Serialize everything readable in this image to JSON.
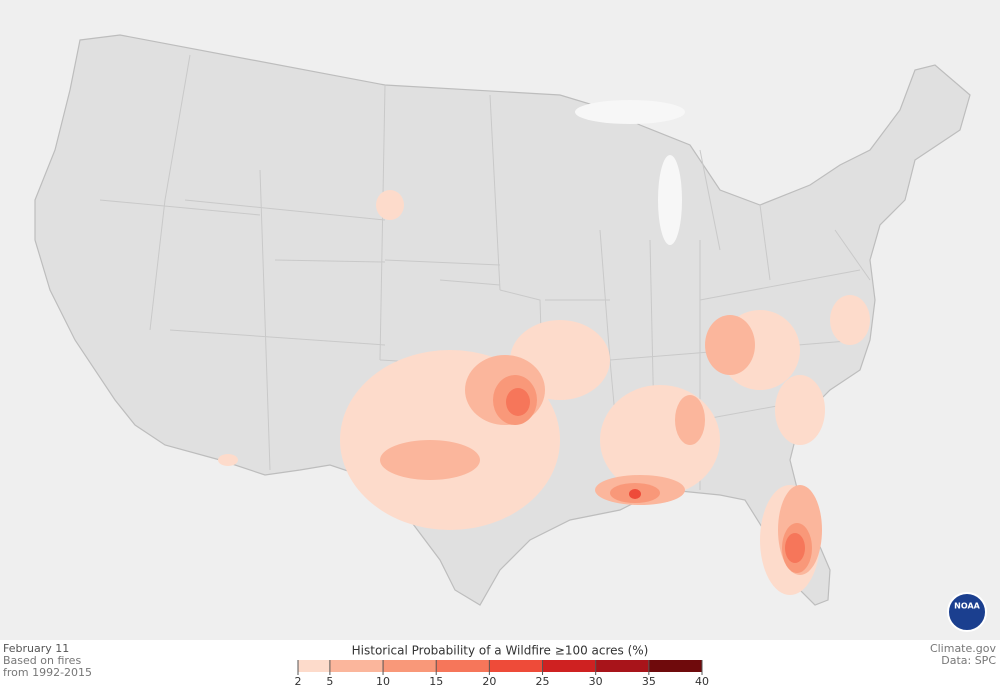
{
  "header": {
    "date": "February 11",
    "note_line1": "Based on fires",
    "note_line2": "from 1992-2015"
  },
  "legend": {
    "title": "Historical Probability of a Wildfire ≥100 acres (%)",
    "ticks": [
      2,
      5,
      10,
      15,
      20,
      25,
      30,
      35,
      40
    ],
    "colors": [
      "#fddbcb",
      "#fbb69c",
      "#f99879",
      "#f6765a",
      "#ee4b39",
      "#cf2121",
      "#a8141a",
      "#6f0a0c"
    ]
  },
  "credits": {
    "source": "Climate.gov",
    "data": "Data: SPC"
  },
  "logo": "NOAA"
}
